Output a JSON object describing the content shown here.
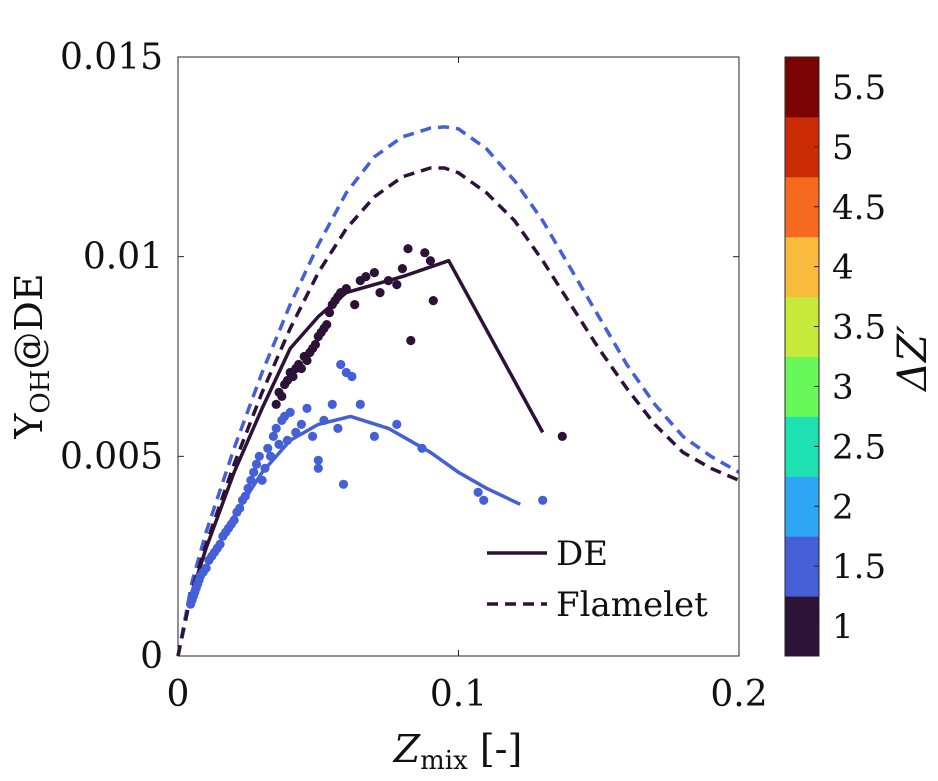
{
  "chart_data": {
    "type": "scatter",
    "xlabel": {
      "main": "Z",
      "sub": "mix",
      "suffix": " [-]"
    },
    "ylabel": {
      "main": "Y",
      "sub": "OH",
      "suffix": "@DE"
    },
    "xlim": [
      0,
      0.2
    ],
    "ylim": [
      0,
      0.015
    ],
    "xticks": [
      {
        "value": 0,
        "label": "0"
      },
      {
        "value": 0.1,
        "label": "0.1"
      },
      {
        "value": 0.2,
        "label": "0.2"
      }
    ],
    "yticks": [
      {
        "value": 0,
        "label": "0"
      },
      {
        "value": 0.005,
        "label": "0.005"
      },
      {
        "value": 0.01,
        "label": "0.01"
      },
      {
        "value": 0.015,
        "label": "0.015"
      }
    ],
    "grid": false,
    "legend": {
      "placement": "bottom-right",
      "entries": [
        {
          "label": "DE",
          "style": "solid",
          "color": "#2d1238"
        },
        {
          "label": "Flamelet",
          "style": "dashed",
          "color": "#2d1238"
        }
      ]
    },
    "colorbar": {
      "label": "ΔZ′",
      "range": [
        0.75,
        5.75
      ],
      "bands": [
        {
          "from": 0.75,
          "to": 1.25,
          "color": "#2d1238"
        },
        {
          "from": 1.25,
          "to": 1.75,
          "color": "#4560d6"
        },
        {
          "from": 1.75,
          "to": 2.25,
          "color": "#2fa6f4"
        },
        {
          "from": 2.25,
          "to": 2.75,
          "color": "#1de1b0"
        },
        {
          "from": 2.75,
          "to": 3.25,
          "color": "#68f85a"
        },
        {
          "from": 3.25,
          "to": 3.75,
          "color": "#c6e93a"
        },
        {
          "from": 3.75,
          "to": 4.25,
          "color": "#f8bb3c"
        },
        {
          "from": 4.25,
          "to": 4.75,
          "color": "#f56a1f"
        },
        {
          "from": 4.75,
          "to": 5.25,
          "color": "#cc2c05"
        },
        {
          "from": 5.25,
          "to": 5.75,
          "color": "#7a0403"
        }
      ],
      "ticks": [
        {
          "value": 1,
          "label": "1"
        },
        {
          "value": 1.5,
          "label": "1.5"
        },
        {
          "value": 2,
          "label": "2"
        },
        {
          "value": 2.5,
          "label": "2.5"
        },
        {
          "value": 3,
          "label": "3"
        },
        {
          "value": 3.5,
          "label": "3.5"
        },
        {
          "value": 4,
          "label": "4"
        },
        {
          "value": 4.5,
          "label": "4.5"
        },
        {
          "value": 5,
          "label": "5"
        },
        {
          "value": 5.5,
          "label": "5.5"
        }
      ]
    },
    "series": [
      {
        "kind": "line",
        "style": "dashed",
        "color": "#4560d6",
        "dz": 1.5,
        "x": [
          0,
          0.005,
          0.01,
          0.02,
          0.03,
          0.04,
          0.05,
          0.06,
          0.07,
          0.08,
          0.09,
          0.095,
          0.1,
          0.11,
          0.12,
          0.13,
          0.14,
          0.15,
          0.16,
          0.17,
          0.18,
          0.19,
          0.2
        ],
        "y": [
          0,
          0.00185,
          0.0031,
          0.0052,
          0.0071,
          0.0088,
          0.0103,
          0.0116,
          0.0125,
          0.013,
          0.01322,
          0.01325,
          0.0132,
          0.0127,
          0.0119,
          0.0109,
          0.0097,
          0.0085,
          0.0073,
          0.0063,
          0.0055,
          0.005,
          0.0046
        ]
      },
      {
        "kind": "line",
        "style": "dashed",
        "color": "#2d1238",
        "dz": 1,
        "x": [
          0,
          0.005,
          0.01,
          0.02,
          0.03,
          0.04,
          0.05,
          0.06,
          0.07,
          0.08,
          0.09,
          0.095,
          0.1,
          0.11,
          0.12,
          0.13,
          0.14,
          0.15,
          0.16,
          0.17,
          0.18,
          0.19,
          0.2
        ],
        "y": [
          0,
          0.00165,
          0.0028,
          0.0048,
          0.0066,
          0.0082,
          0.0096,
          0.0107,
          0.0115,
          0.012,
          0.01222,
          0.01222,
          0.0121,
          0.0116,
          0.0109,
          0.0099,
          0.0088,
          0.0077,
          0.0067,
          0.0058,
          0.0051,
          0.0047,
          0.0044
        ]
      },
      {
        "kind": "line",
        "style": "solid",
        "color": "#2d1238",
        "dz": 1,
        "x": [
          0.005,
          0.01,
          0.02,
          0.03,
          0.04,
          0.05,
          0.06,
          0.07,
          0.08,
          0.0965,
          0.13
        ],
        "y": [
          0.0016,
          0.0027,
          0.0046,
          0.0062,
          0.0077,
          0.0085,
          0.0091,
          0.0093,
          0.0095,
          0.0099,
          0.0056
        ]
      },
      {
        "kind": "line",
        "style": "solid",
        "color": "#4560d6",
        "dz": 1.5,
        "x": [
          0.005,
          0.01,
          0.02,
          0.03,
          0.04,
          0.05,
          0.0615,
          0.075,
          0.09,
          0.1,
          0.11,
          0.122
        ],
        "y": [
          0.0015,
          0.0022,
          0.0035,
          0.0046,
          0.0054,
          0.0058,
          0.006,
          0.0057,
          0.0051,
          0.0046,
          0.0042,
          0.0038
        ]
      },
      {
        "kind": "scatter",
        "color": "#2d1238",
        "dz": 1,
        "points": [
          [
            0.035,
            0.0063
          ],
          [
            0.036,
            0.0066
          ],
          [
            0.037,
            0.0065
          ],
          [
            0.038,
            0.0068
          ],
          [
            0.039,
            0.0069
          ],
          [
            0.04,
            0.0071
          ],
          [
            0.041,
            0.007
          ],
          [
            0.042,
            0.0072
          ],
          [
            0.043,
            0.0073
          ],
          [
            0.044,
            0.0072
          ],
          [
            0.045,
            0.0075
          ],
          [
            0.046,
            0.0074
          ],
          [
            0.047,
            0.0076
          ],
          [
            0.048,
            0.0077
          ],
          [
            0.049,
            0.0078
          ],
          [
            0.05,
            0.008
          ],
          [
            0.051,
            0.0081
          ],
          [
            0.052,
            0.0082
          ],
          [
            0.053,
            0.0083
          ],
          [
            0.054,
            0.0086
          ],
          [
            0.055,
            0.0088
          ],
          [
            0.056,
            0.0089
          ],
          [
            0.057,
            0.009
          ],
          [
            0.058,
            0.0091
          ],
          [
            0.06,
            0.0092
          ],
          [
            0.063,
            0.0088
          ],
          [
            0.065,
            0.0094
          ],
          [
            0.067,
            0.0095
          ],
          [
            0.07,
            0.0096
          ],
          [
            0.072,
            0.0091
          ],
          [
            0.075,
            0.0094
          ],
          [
            0.078,
            0.0093
          ],
          [
            0.08,
            0.0097
          ],
          [
            0.082,
            0.0102
          ],
          [
            0.083,
            0.0079
          ],
          [
            0.088,
            0.0101
          ],
          [
            0.09,
            0.0099
          ],
          [
            0.091,
            0.0089
          ],
          [
            0.137,
            0.0055
          ]
        ]
      },
      {
        "kind": "scatter",
        "color": "#4560d6",
        "dz": 1.5,
        "points": [
          [
            0.0045,
            0.0013
          ],
          [
            0.005,
            0.0014
          ],
          [
            0.0055,
            0.0015
          ],
          [
            0.006,
            0.0016
          ],
          [
            0.0065,
            0.0017
          ],
          [
            0.007,
            0.0018
          ],
          [
            0.0075,
            0.0019
          ],
          [
            0.008,
            0.002
          ],
          [
            0.009,
            0.0021
          ],
          [
            0.01,
            0.0022
          ],
          [
            0.011,
            0.0024
          ],
          [
            0.012,
            0.0025
          ],
          [
            0.013,
            0.0026
          ],
          [
            0.014,
            0.0027
          ],
          [
            0.015,
            0.0028
          ],
          [
            0.016,
            0.003
          ],
          [
            0.017,
            0.0031
          ],
          [
            0.018,
            0.0032
          ],
          [
            0.019,
            0.0033
          ],
          [
            0.02,
            0.0034
          ],
          [
            0.021,
            0.0036
          ],
          [
            0.022,
            0.0037
          ],
          [
            0.023,
            0.0039
          ],
          [
            0.024,
            0.004
          ],
          [
            0.025,
            0.0042
          ],
          [
            0.026,
            0.0044
          ],
          [
            0.027,
            0.0046
          ],
          [
            0.028,
            0.0048
          ],
          [
            0.029,
            0.005
          ],
          [
            0.03,
            0.0044
          ],
          [
            0.031,
            0.0047
          ],
          [
            0.032,
            0.0052
          ],
          [
            0.033,
            0.005
          ],
          [
            0.034,
            0.0055
          ],
          [
            0.035,
            0.0057
          ],
          [
            0.036,
            0.0053
          ],
          [
            0.037,
            0.0059
          ],
          [
            0.038,
            0.006
          ],
          [
            0.039,
            0.0054
          ],
          [
            0.04,
            0.0061
          ],
          [
            0.042,
            0.0056
          ],
          [
            0.044,
            0.0058
          ],
          [
            0.046,
            0.0062
          ],
          [
            0.048,
            0.0055
          ],
          [
            0.05,
            0.0049
          ],
          [
            0.05,
            0.0047
          ],
          [
            0.052,
            0.0059
          ],
          [
            0.055,
            0.0063
          ],
          [
            0.057,
            0.0057
          ],
          [
            0.058,
            0.0073
          ],
          [
            0.059,
            0.0043
          ],
          [
            0.06,
            0.0071
          ],
          [
            0.062,
            0.007
          ],
          [
            0.065,
            0.0063
          ],
          [
            0.07,
            0.0055
          ],
          [
            0.078,
            0.0058
          ],
          [
            0.087,
            0.0052
          ],
          [
            0.107,
            0.0041
          ],
          [
            0.109,
            0.0039
          ],
          [
            0.13,
            0.0039
          ]
        ]
      }
    ]
  }
}
